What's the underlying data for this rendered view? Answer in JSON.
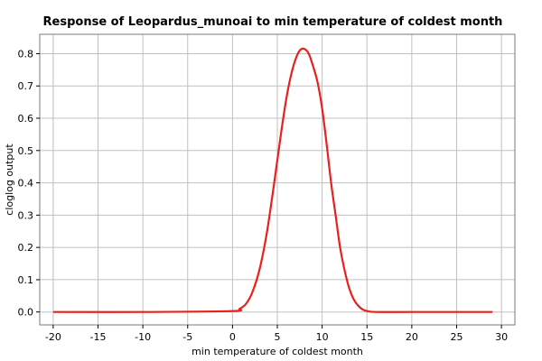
{
  "chart_data": {
    "type": "line",
    "title": "Response of Leopardus_munoai to min temperature of coldest month",
    "xlabel": "min temperature of coldest month",
    "ylabel": "cloglog output",
    "xlim": [
      -21.5,
      31.5
    ],
    "ylim": [
      -0.04,
      0.86
    ],
    "xticks": [
      -20,
      -15,
      -10,
      -5,
      0,
      5,
      10,
      15,
      20,
      25,
      30
    ],
    "yticks": [
      0.0,
      0.1,
      0.2,
      0.3,
      0.4,
      0.5,
      0.6,
      0.7,
      0.8
    ],
    "xtick_labels": [
      "-20",
      "-15",
      "-10",
      "-5",
      "0",
      "5",
      "10",
      "15",
      "20",
      "25",
      "30"
    ],
    "ytick_labels": [
      "0.0",
      "0.1",
      "0.2",
      "0.3",
      "0.4",
      "0.5",
      "0.6",
      "0.7",
      "0.8"
    ],
    "grid": true,
    "series": [
      {
        "color": "#e8211d",
        "x": [
          -20,
          -10,
          0,
          0.8,
          1.5,
          2.2,
          3,
          3.8,
          4.5,
          5,
          5.5,
          6,
          6.5,
          7,
          7.5,
          8,
          8.5,
          9,
          9.5,
          10,
          10.5,
          11,
          11.5,
          12,
          12.5,
          13,
          13.5,
          14,
          14.5,
          15,
          16,
          20,
          29
        ],
        "y": [
          0.0,
          0.0,
          0.003,
          0.01,
          0.025,
          0.06,
          0.13,
          0.24,
          0.37,
          0.47,
          0.57,
          0.66,
          0.73,
          0.78,
          0.81,
          0.815,
          0.8,
          0.76,
          0.71,
          0.63,
          0.52,
          0.4,
          0.3,
          0.2,
          0.13,
          0.075,
          0.04,
          0.02,
          0.008,
          0.003,
          0.0,
          0.0,
          0.0
        ]
      }
    ]
  }
}
